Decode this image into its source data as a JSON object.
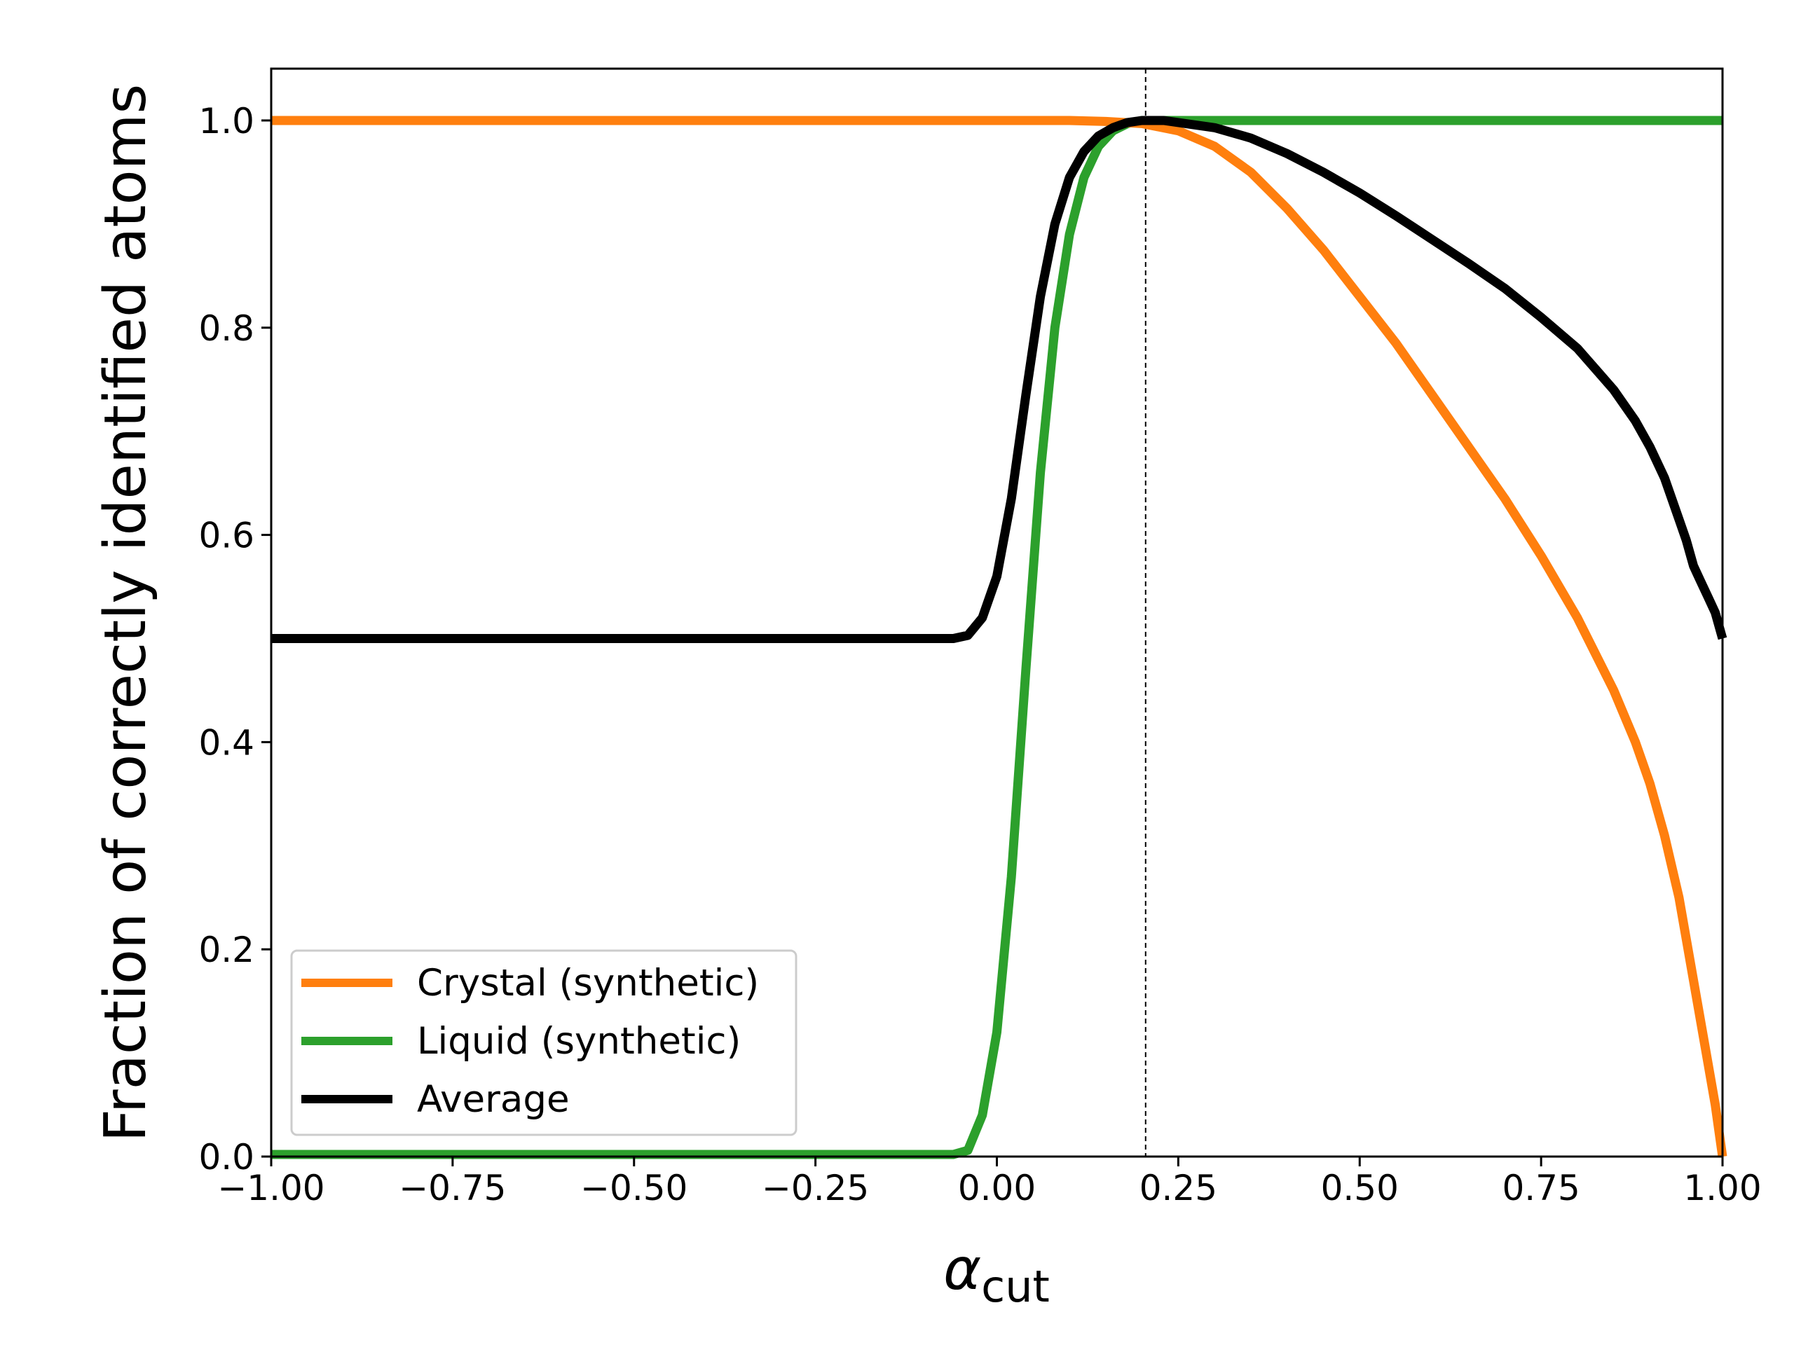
{
  "chart_data": {
    "type": "line",
    "title": "",
    "xlabel": {
      "main": "α",
      "sub": "cut"
    },
    "ylabel": "Fraction of correctly identified atoms",
    "xlim": [
      -1.0,
      1.0
    ],
    "ylim": [
      0.0,
      1.05
    ],
    "xticks": [
      -1.0,
      -0.75,
      -0.5,
      -0.25,
      0.0,
      0.25,
      0.5,
      0.75,
      1.0
    ],
    "xtick_labels": [
      "−1.00",
      "−0.75",
      "−0.50",
      "−0.25",
      "0.00",
      "0.25",
      "0.50",
      "0.75",
      "1.00"
    ],
    "yticks": [
      0.0,
      0.2,
      0.4,
      0.6,
      0.8,
      1.0
    ],
    "ytick_labels": [
      "0.0",
      "0.2",
      "0.4",
      "0.6",
      "0.8",
      "1.0"
    ],
    "grid": false,
    "legend_position": "lower-left",
    "vline": {
      "x": 0.205,
      "style": "dashed",
      "color": "#000000"
    },
    "series": [
      {
        "name": "Crystal (synthetic)",
        "color": "#ff7f0e",
        "x": [
          -1.0,
          -0.5,
          0.0,
          0.1,
          0.15,
          0.2,
          0.25,
          0.3,
          0.35,
          0.4,
          0.45,
          0.5,
          0.55,
          0.6,
          0.65,
          0.7,
          0.75,
          0.8,
          0.85,
          0.88,
          0.9,
          0.92,
          0.94,
          0.96,
          0.98,
          0.99,
          1.0
        ],
        "y": [
          1.0,
          1.0,
          1.0,
          1.0,
          0.999,
          0.997,
          0.99,
          0.975,
          0.95,
          0.915,
          0.875,
          0.83,
          0.785,
          0.735,
          0.685,
          0.635,
          0.58,
          0.52,
          0.45,
          0.4,
          0.36,
          0.31,
          0.25,
          0.17,
          0.09,
          0.05,
          0.0
        ]
      },
      {
        "name": "Liquid (synthetic)",
        "color": "#2ca02c",
        "x": [
          -1.0,
          -0.06,
          -0.04,
          -0.02,
          0.0,
          0.02,
          0.04,
          0.06,
          0.08,
          0.1,
          0.12,
          0.14,
          0.16,
          0.18,
          0.2,
          0.25,
          0.5,
          0.75,
          1.0
        ],
        "y": [
          0.002,
          0.002,
          0.006,
          0.04,
          0.12,
          0.27,
          0.47,
          0.66,
          0.8,
          0.89,
          0.945,
          0.975,
          0.99,
          0.997,
          1.0,
          1.0,
          1.0,
          1.0,
          1.0
        ]
      },
      {
        "name": "Average",
        "color": "#000000",
        "x": [
          -1.0,
          -0.5,
          -0.06,
          -0.04,
          -0.02,
          0.0,
          0.02,
          0.04,
          0.06,
          0.08,
          0.1,
          0.12,
          0.14,
          0.16,
          0.18,
          0.2,
          0.23,
          0.3,
          0.35,
          0.4,
          0.45,
          0.5,
          0.55,
          0.6,
          0.65,
          0.7,
          0.75,
          0.8,
          0.85,
          0.88,
          0.9,
          0.92,
          0.94,
          0.95,
          0.96,
          0.97,
          0.98,
          0.99,
          1.0
        ],
        "y": [
          0.5,
          0.5,
          0.5,
          0.503,
          0.52,
          0.56,
          0.635,
          0.735,
          0.83,
          0.9,
          0.945,
          0.97,
          0.985,
          0.993,
          0.998,
          1.0,
          1.0,
          0.993,
          0.983,
          0.968,
          0.95,
          0.93,
          0.908,
          0.885,
          0.862,
          0.838,
          0.81,
          0.78,
          0.74,
          0.71,
          0.685,
          0.655,
          0.615,
          0.595,
          0.57,
          0.555,
          0.54,
          0.525,
          0.5
        ]
      }
    ]
  }
}
